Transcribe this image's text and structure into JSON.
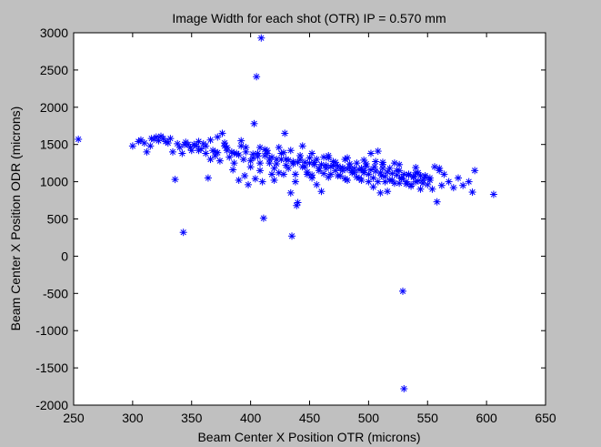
{
  "chart_data": {
    "type": "scatter",
    "title": "Image Width for each shot (OTR) IP = 0.570 mm",
    "xlabel": "Beam Center X Position OTR (microns)",
    "ylabel": "Beam Center X Position ODR (microns)",
    "xlim": [
      250,
      650
    ],
    "ylim": [
      -2000,
      3000
    ],
    "xticks": [
      250,
      300,
      350,
      400,
      450,
      500,
      550,
      600,
      650
    ],
    "yticks": [
      -2000,
      -1500,
      -1000,
      -500,
      0,
      500,
      1000,
      1500,
      2000,
      2500,
      3000
    ],
    "marker": "*",
    "marker_color": "#0000ff",
    "background_color": "#c0c0c0",
    "axes_color": "#ffffff",
    "grid": false,
    "points": [
      [
        254,
        1570
      ],
      [
        300,
        1480
      ],
      [
        305,
        1540
      ],
      [
        307,
        1560
      ],
      [
        310,
        1520
      ],
      [
        312,
        1400
      ],
      [
        315,
        1480
      ],
      [
        318,
        1570
      ],
      [
        320,
        1600
      ],
      [
        322,
        1550
      ],
      [
        324,
        1610
      ],
      [
        326,
        1580
      ],
      [
        328,
        1540
      ],
      [
        330,
        1520
      ],
      [
        332,
        1580
      ],
      [
        334,
        1400
      ],
      [
        336,
        1030
      ],
      [
        338,
        1510
      ],
      [
        340,
        1460
      ],
      [
        342,
        1380
      ],
      [
        343,
        320
      ],
      [
        345,
        1530
      ],
      [
        347,
        1500
      ],
      [
        349,
        1460
      ],
      [
        350,
        1420
      ],
      [
        352,
        1500
      ],
      [
        354,
        1480
      ],
      [
        356,
        1540
      ],
      [
        358,
        1440
      ],
      [
        360,
        1510
      ],
      [
        362,
        1380
      ],
      [
        364,
        1050
      ],
      [
        366,
        1300
      ],
      [
        368,
        1420
      ],
      [
        370,
        1350
      ],
      [
        372,
        1600
      ],
      [
        374,
        1280
      ],
      [
        376,
        1650
      ],
      [
        378,
        1480
      ],
      [
        380,
        1420
      ],
      [
        382,
        1330
      ],
      [
        384,
        1400
      ],
      [
        386,
        1250
      ],
      [
        388,
        1380
      ],
      [
        390,
        1020
      ],
      [
        392,
        1550
      ],
      [
        394,
        1300
      ],
      [
        396,
        1460
      ],
      [
        398,
        960
      ],
      [
        400,
        1200
      ],
      [
        402,
        1320
      ],
      [
        403,
        1780
      ],
      [
        404,
        1040
      ],
      [
        405,
        2410
      ],
      [
        406,
        1380
      ],
      [
        408,
        1250
      ],
      [
        409,
        2930
      ],
      [
        410,
        1000
      ],
      [
        411,
        510
      ],
      [
        412,
        1430
      ],
      [
        414,
        1380
      ],
      [
        416,
        1300
      ],
      [
        418,
        1100
      ],
      [
        420,
        1020
      ],
      [
        422,
        1240
      ],
      [
        424,
        1460
      ],
      [
        426,
        1380
      ],
      [
        428,
        1100
      ],
      [
        429,
        1650
      ],
      [
        430,
        1300
      ],
      [
        432,
        1180
      ],
      [
        434,
        850
      ],
      [
        435,
        270
      ],
      [
        436,
        1240
      ],
      [
        438,
        1000
      ],
      [
        439,
        680
      ],
      [
        440,
        720
      ],
      [
        442,
        1300
      ],
      [
        444,
        1480
      ],
      [
        446,
        1200
      ],
      [
        448,
        1100
      ],
      [
        450,
        1320
      ],
      [
        452,
        1050
      ],
      [
        454,
        1260
      ],
      [
        456,
        960
      ],
      [
        458,
        1150
      ],
      [
        460,
        870
      ],
      [
        462,
        1330
      ],
      [
        464,
        1180
      ],
      [
        466,
        1320
      ],
      [
        468,
        1100
      ],
      [
        470,
        1220
      ],
      [
        472,
        1260
      ],
      [
        474,
        1080
      ],
      [
        476,
        1180
      ],
      [
        478,
        1150
      ],
      [
        480,
        1300
      ],
      [
        482,
        1020
      ],
      [
        484,
        1200
      ],
      [
        486,
        1150
      ],
      [
        488,
        1120
      ],
      [
        490,
        1250
      ],
      [
        492,
        1050
      ],
      [
        494,
        1180
      ],
      [
        496,
        1120
      ],
      [
        498,
        1240
      ],
      [
        500,
        1000
      ],
      [
        502,
        1380
      ],
      [
        504,
        930
      ],
      [
        505,
        1200
      ],
      [
        506,
        1270
      ],
      [
        508,
        1410
      ],
      [
        510,
        850
      ],
      [
        511,
        1080
      ],
      [
        512,
        1230
      ],
      [
        514,
        1000
      ],
      [
        516,
        870
      ],
      [
        518,
        1180
      ],
      [
        520,
        1020
      ],
      [
        522,
        1250
      ],
      [
        524,
        1150
      ],
      [
        526,
        980
      ],
      [
        528,
        1050
      ],
      [
        529,
        -470
      ],
      [
        530,
        -1780
      ],
      [
        532,
        970
      ],
      [
        534,
        1100
      ],
      [
        536,
        940
      ],
      [
        538,
        1060
      ],
      [
        540,
        1000
      ],
      [
        542,
        1120
      ],
      [
        544,
        900
      ],
      [
        546,
        1020
      ],
      [
        548,
        1080
      ],
      [
        550,
        960
      ],
      [
        552,
        1020
      ],
      [
        554,
        900
      ],
      [
        556,
        1200
      ],
      [
        558,
        730
      ],
      [
        560,
        1180
      ],
      [
        562,
        950
      ],
      [
        564,
        1100
      ],
      [
        568,
        1000
      ],
      [
        572,
        920
      ],
      [
        576,
        1050
      ],
      [
        580,
        950
      ],
      [
        585,
        1000
      ],
      [
        588,
        860
      ],
      [
        590,
        1150
      ],
      [
        606,
        830
      ],
      [
        316,
        1580
      ],
      [
        344,
        1500
      ],
      [
        362,
        1480
      ],
      [
        380,
        1460
      ],
      [
        396,
        1400
      ],
      [
        412,
        1350
      ],
      [
        426,
        1300
      ],
      [
        440,
        1260
      ],
      [
        454,
        1230
      ],
      [
        468,
        1200
      ],
      [
        482,
        1170
      ],
      [
        496,
        1150
      ],
      [
        510,
        1120
      ],
      [
        524,
        1090
      ],
      [
        538,
        1070
      ],
      [
        552,
        1050
      ],
      [
        370,
        1400
      ],
      [
        386,
        1380
      ],
      [
        402,
        1370
      ],
      [
        418,
        1330
      ],
      [
        432,
        1290
      ],
      [
        446,
        1260
      ],
      [
        460,
        1230
      ],
      [
        474,
        1210
      ],
      [
        488,
        1180
      ],
      [
        502,
        1160
      ],
      [
        516,
        1130
      ],
      [
        530,
        1100
      ],
      [
        544,
        1080
      ],
      [
        356,
        1420
      ],
      [
        372,
        1390
      ],
      [
        390,
        1360
      ],
      [
        406,
        1340
      ],
      [
        422,
        1300
      ],
      [
        436,
        1270
      ],
      [
        450,
        1250
      ],
      [
        464,
        1220
      ],
      [
        478,
        1190
      ],
      [
        492,
        1160
      ],
      [
        506,
        1140
      ],
      [
        520,
        1110
      ],
      [
        534,
        1090
      ],
      [
        548,
        1060
      ],
      [
        414,
        1420
      ],
      [
        428,
        1390
      ],
      [
        442,
        1350
      ],
      [
        456,
        1300
      ],
      [
        470,
        1270
      ],
      [
        484,
        1240
      ],
      [
        498,
        1210
      ],
      [
        512,
        1180
      ],
      [
        526,
        1150
      ],
      [
        540,
        1120
      ],
      [
        400,
        1280
      ],
      [
        416,
        1250
      ],
      [
        430,
        1220
      ],
      [
        444,
        1200
      ],
      [
        458,
        1180
      ],
      [
        472,
        1150
      ],
      [
        486,
        1120
      ],
      [
        500,
        1100
      ],
      [
        514,
        1070
      ],
      [
        528,
        1040
      ],
      [
        542,
        1010
      ],
      [
        408,
        1150
      ],
      [
        424,
        1120
      ],
      [
        438,
        1100
      ],
      [
        452,
        1090
      ],
      [
        466,
        1060
      ],
      [
        480,
        1040
      ],
      [
        494,
        1020
      ],
      [
        508,
        1000
      ],
      [
        522,
        980
      ],
      [
        536,
        960
      ],
      [
        385,
        1160
      ],
      [
        395,
        1080
      ],
      [
        420,
        1180
      ],
      [
        448,
        1130
      ],
      [
        462,
        1110
      ],
      [
        476,
        1080
      ],
      [
        490,
        1060
      ],
      [
        504,
        1050
      ],
      [
        518,
        1020
      ],
      [
        532,
        1000
      ],
      [
        546,
        980
      ],
      [
        560,
        1150
      ],
      [
        366,
        1560
      ],
      [
        378,
        1520
      ],
      [
        392,
        1480
      ],
      [
        408,
        1460
      ],
      [
        434,
        1420
      ],
      [
        452,
        1380
      ],
      [
        466,
        1350
      ],
      [
        482,
        1320
      ],
      [
        496,
        1290
      ],
      [
        512,
        1260
      ],
      [
        526,
        1230
      ],
      [
        540,
        1190
      ]
    ]
  }
}
